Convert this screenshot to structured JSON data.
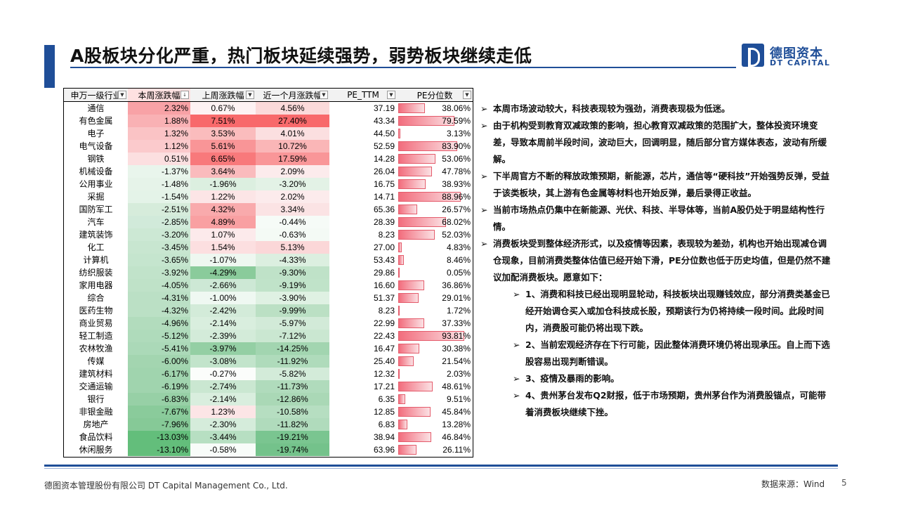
{
  "title": "A股板块分化严重，热门板块延续强势，弱势板块继续走低",
  "logo": {
    "cn": "德图资本",
    "en": "DT CAPITAL"
  },
  "table": {
    "headers": [
      "申万一级行业",
      "本周涨跌幅",
      "上周涨跌幅",
      "近一个月涨跌幅",
      "PE_TTM",
      "PE分位数"
    ],
    "header_icons": [
      "filter-dropdown-icon",
      "sort-desc-icon",
      "filter-dropdown-icon",
      "filter-dropdown-icon",
      "filter-dropdown-icon",
      "filter-dropdown-icon"
    ],
    "rows": [
      {
        "name": "通信",
        "week": "2.32%",
        "lastweek": "0.67%",
        "month": "4.56%",
        "pe": "37.19",
        "pct": "38.06%",
        "pct_v": 0.3806,
        "c1": "#f8a2a6",
        "c2": "#fdf2f3",
        "c3": "#fbdada"
      },
      {
        "name": "有色金属",
        "week": "1.88%",
        "lastweek": "7.51%",
        "month": "27.40%",
        "pe": "43.34",
        "pct": "79.59%",
        "pct_v": 0.7959,
        "c1": "#f9b1b4",
        "c2": "#f8696b",
        "c3": "#f8696b"
      },
      {
        "name": "电子",
        "week": "1.32%",
        "lastweek": "3.53%",
        "month": "4.01%",
        "pe": "44.50",
        "pct": "3.13%",
        "pct_v": 0.0313,
        "c1": "#fac3c5",
        "c2": "#fabcbd",
        "c3": "#fbdfe0"
      },
      {
        "name": "电气设备",
        "week": "1.12%",
        "lastweek": "5.61%",
        "month": "10.72%",
        "pe": "52.59",
        "pct": "83.90%",
        "pct_v": 0.839,
        "c1": "#fbcacc",
        "c2": "#f99597",
        "c3": "#fab6b7"
      },
      {
        "name": "钢铁",
        "week": "0.51%",
        "lastweek": "6.65%",
        "month": "17.59%",
        "pe": "14.28",
        "pct": "53.06%",
        "pct_v": 0.5306,
        "c1": "#fcdfe0",
        "c2": "#f8797b",
        "c3": "#f99698"
      },
      {
        "name": "机械设备",
        "week": "-1.37%",
        "lastweek": "3.64%",
        "month": "2.09%",
        "pe": "26.04",
        "pct": "47.78%",
        "pct_v": 0.4778,
        "c1": "#e9f5ec",
        "c2": "#fabbbd",
        "c3": "#fcebec"
      },
      {
        "name": "公用事业",
        "week": "-1.48%",
        "lastweek": "-1.96%",
        "month": "-3.20%",
        "pe": "16.75",
        "pct": "38.93%",
        "pct_v": 0.3893,
        "c1": "#e6f3e9",
        "c2": "#dcefe0",
        "c3": "#e3f2e6"
      },
      {
        "name": "采掘",
        "week": "-1.54%",
        "lastweek": "1.22%",
        "month": "2.02%",
        "pe": "14.71",
        "pct": "88.96%",
        "pct_v": 0.8896,
        "c1": "#e4f3e8",
        "c2": "#fce5e6",
        "c3": "#fcebec"
      },
      {
        "name": "国防军工",
        "week": "-2.51%",
        "lastweek": "4.32%",
        "month": "3.34%",
        "pe": "65.36",
        "pct": "26.57%",
        "pct_v": 0.2657,
        "c1": "#d6ecdb",
        "c2": "#f9aaac",
        "c3": "#fbe3e4"
      },
      {
        "name": "汽车",
        "week": "-2.85%",
        "lastweek": "4.89%",
        "month": "-0.44%",
        "pe": "28.39",
        "pct": "68.02%",
        "pct_v": 0.6802,
        "c1": "#d1eada",
        "c2": "#f9a0a2",
        "c3": "#f6fbf7"
      },
      {
        "name": "建筑装饰",
        "week": "-3.20%",
        "lastweek": "1.07%",
        "month": "-0.63%",
        "pe": "8.23",
        "pct": "52.03%",
        "pct_v": 0.5203,
        "c1": "#cce8d4",
        "c2": "#fceaeb",
        "c3": "#f4faf5"
      },
      {
        "name": "化工",
        "week": "-3.45%",
        "lastweek": "1.54%",
        "month": "5.13%",
        "pe": "27.00",
        "pct": "4.83%",
        "pct_v": 0.0483,
        "c1": "#c8e6d0",
        "c2": "#fcdfe0",
        "c3": "#fbd7d8"
      },
      {
        "name": "计算机",
        "week": "-3.65%",
        "lastweek": "-1.07%",
        "month": "-4.33%",
        "pe": "53.43",
        "pct": "8.46%",
        "pct_v": 0.0846,
        "c1": "#c5e5ce",
        "c2": "#eef7f0",
        "c3": "#dcefe0"
      },
      {
        "name": "纺织服装",
        "week": "-3.92%",
        "lastweek": "-4.29%",
        "month": "-9.30%",
        "pe": "29.86",
        "pct": "0.05%",
        "pct_v": 0.0005,
        "c1": "#c1e3ca",
        "c2": "#8acb9b",
        "c3": "#bfe2c8"
      },
      {
        "name": "家用电器",
        "week": "-4.05%",
        "lastweek": "-2.66%",
        "month": "-9.19%",
        "pe": "16.60",
        "pct": "36.86%",
        "pct_v": 0.3686,
        "c1": "#bfe2c8",
        "c2": "#cde8d5",
        "c3": "#c0e3c9"
      },
      {
        "name": "综合",
        "week": "-4.31%",
        "lastweek": "-1.00%",
        "month": "-3.90%",
        "pe": "51.37",
        "pct": "29.01%",
        "pct_v": 0.2901,
        "c1": "#bbe0c5",
        "c2": "#eff8f2",
        "c3": "#dff1e3"
      },
      {
        "name": "医药生物",
        "week": "-4.32%",
        "lastweek": "-2.42%",
        "month": "-9.99%",
        "pe": "8.23",
        "pct": "1.72%",
        "pct_v": 0.0172,
        "c1": "#bbe0c5",
        "c2": "#d3ebd9",
        "c3": "#bbe0c4"
      },
      {
        "name": "商业贸易",
        "week": "-4.96%",
        "lastweek": "-2.14%",
        "month": "-5.97%",
        "pe": "22.99",
        "pct": "37.33%",
        "pct_v": 0.3733,
        "c1": "#b2dcbd",
        "c2": "#d9eede",
        "c3": "#d2ead8"
      },
      {
        "name": "轻工制造",
        "week": "-5.12%",
        "lastweek": "-2.39%",
        "month": "-7.12%",
        "pe": "22.43",
        "pct": "93.81%",
        "pct_v": 0.9381,
        "c1": "#afdbbb",
        "c2": "#d3ebd9",
        "c3": "#cae7d1"
      },
      {
        "name": "农林牧渔",
        "week": "-5.41%",
        "lastweek": "-3.97%",
        "month": "-14.25%",
        "pe": "16.47",
        "pct": "30.38%",
        "pct_v": 0.3038,
        "c1": "#abd9b8",
        "c2": "#94cfa4",
        "c3": "#a2d5b0"
      },
      {
        "name": "传媒",
        "week": "-6.00%",
        "lastweek": "-3.08%",
        "month": "-11.92%",
        "pe": "25.40",
        "pct": "21.54%",
        "pct_v": 0.2154,
        "c1": "#a3d5b0",
        "c2": "#c2e4cb",
        "c3": "#afdbbb"
      },
      {
        "name": "建筑材料",
        "week": "-6.17%",
        "lastweek": "-0.27%",
        "month": "-5.82%",
        "pe": "12.32",
        "pct": "2.03%",
        "pct_v": 0.0203,
        "c1": "#a0d4ae",
        "c2": "#fbfdfb",
        "c3": "#d3ebd9"
      },
      {
        "name": "交通运输",
        "week": "-6.19%",
        "lastweek": "-2.74%",
        "month": "-11.73%",
        "pe": "17.21",
        "pct": "48.61%",
        "pct_v": 0.4861,
        "c1": "#a0d4ae",
        "c2": "#cae7d1",
        "c3": "#b0dbbc"
      },
      {
        "name": "银行",
        "week": "-6.83%",
        "lastweek": "-2.14%",
        "month": "-12.86%",
        "pe": "6.35",
        "pct": "9.51%",
        "pct_v": 0.0951,
        "c1": "#97d0a6",
        "c2": "#d9eede",
        "c3": "#aad8b6"
      },
      {
        "name": "非银金融",
        "week": "-7.67%",
        "lastweek": "1.23%",
        "month": "-10.58%",
        "pe": "12.85",
        "pct": "45.84%",
        "pct_v": 0.4584,
        "c1": "#8acb9b",
        "c2": "#fce5e6",
        "c3": "#b6dec1"
      },
      {
        "name": "房地产",
        "week": "-7.96%",
        "lastweek": "-2.30%",
        "month": "-11.82%",
        "pe": "6.83",
        "pct": "13.28%",
        "pct_v": 0.1328,
        "c1": "#86c997",
        "c2": "#d5ecdb",
        "c3": "#b0dbbc"
      },
      {
        "name": "食品饮料",
        "week": "-13.03%",
        "lastweek": "-3.44%",
        "month": "-19.21%",
        "pe": "38.94",
        "pct": "46.84%",
        "pct_v": 0.4684,
        "c1": "#63be7b",
        "c2": "#b7dfc2",
        "c3": "#7ac590"
      },
      {
        "name": "休闲服务",
        "week": "-13.10%",
        "lastweek": "-0.58%",
        "month": "-19.74%",
        "pe": "63.96",
        "pct": "26.11%",
        "pct_v": 0.2611,
        "c1": "#63be7b",
        "c2": "#f8fcf9",
        "c3": "#74c28b"
      }
    ]
  },
  "bullets": [
    "本周市场波动较大，科技表现较为强劲，消费表现极为低迷。",
    "由于机构受到教育双减政策的影响，担心教育双减政策的范围扩大，整体投资环境变差，导致本周前半段时间，波动巨大，回调明显，随后部分官方媒体表态，波动有所缓解。",
    "下半周官方不断的释放政策预期，新能源，芯片，通信等“硬科技”开始强势反弹，受益于该类板块，其上游有色金属等材料也开始反弹，最后录得正收益。",
    "当前市场热点仍集中在新能源、光伏、科技、半导体等，当前A股仍处于明显结构性行情。",
    "消费板块受到整体经济形式，以及疫情等因素，表现较为差劲，机构也开始出现减仓调仓现象，目前消费类整体估值已经开始下滑，PE分位数也低于历史均值，但是仍然不建议加配消费板块。愿意如下："
  ],
  "sub_bullets": [
    "1、消费和科技已经出现明显轮动，科技板块出现赚钱效应，部分消费类基金已经开始调仓买入或加仓科技成长股，预期该行为仍将持续一段时间。此段时间内，消费股可能仍将出现下跌。",
    "2、当前宏观经济存在下行可能，因此整体消费环境仍将出现承压。自上而下选股容易出现判断错误。",
    "3、疫情及暴雨的影响。",
    "4、贵州茅台发布Q2财报，低于市场预期，贵州茅台作为消费股锚点，可能带着消费板块继续下挫。"
  ],
  "arrow_glyph": "➢",
  "footer": {
    "company": "德图资本管理股份有限公司 DT Capital Management Co., Ltd.",
    "source": "数据来源：Wind",
    "page": "5"
  },
  "colors": {
    "brand": "#1f4e98",
    "up": "#f8696b",
    "down": "#63be7b"
  }
}
